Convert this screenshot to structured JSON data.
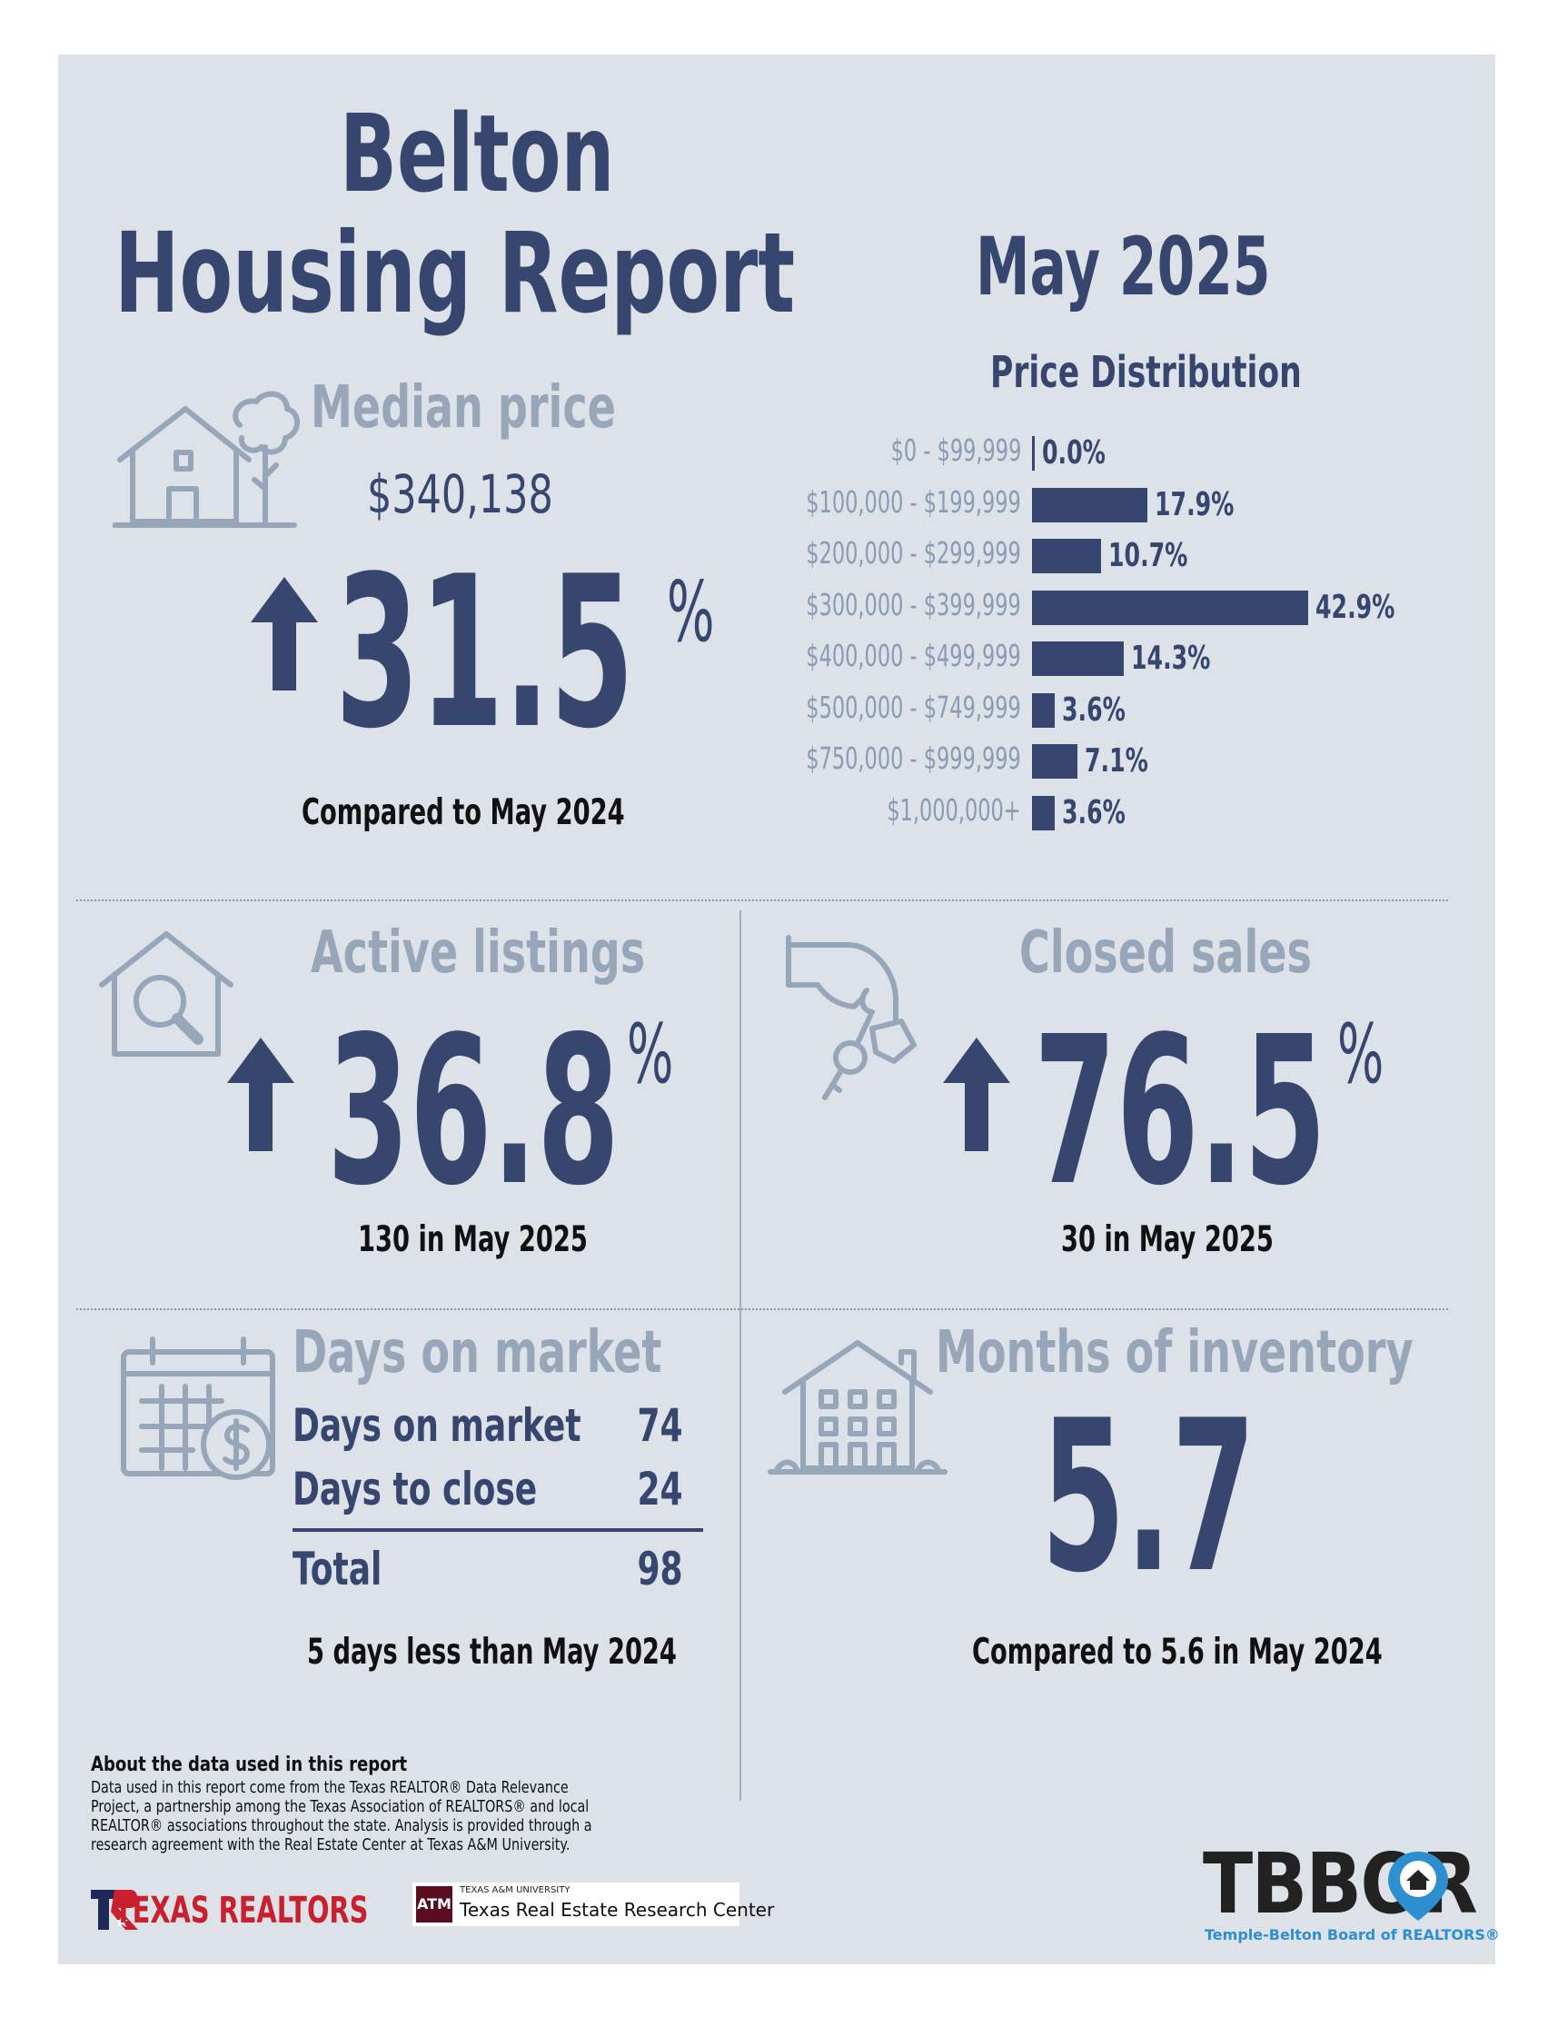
{
  "title": {
    "line1": "Belton",
    "line2": "Housing Report",
    "month": "May 2025"
  },
  "median": {
    "label": "Median price",
    "value": "$340,138",
    "change": "31.5",
    "pct_symbol": "%",
    "direction": "up",
    "compare": "Compared to May 2024"
  },
  "price_distribution": {
    "title": "Price Distribution",
    "ranges": [
      "$0 - $99,999",
      "$100,000 - $199,999",
      "$200,000 - $299,999",
      "$300,000 - $399,999",
      "$400,000 - $499,999",
      "$500,000 - $749,999",
      "$750,000 - $999,999",
      "$1,000,000+"
    ],
    "labels": [
      "0.0%",
      "17.9%",
      "10.7%",
      "42.9%",
      "14.3%",
      "3.6%",
      "7.1%",
      "3.6%"
    ],
    "values": [
      0.0,
      17.9,
      10.7,
      42.9,
      14.3,
      3.6,
      7.1,
      3.6
    ],
    "bar_color": "#36466f"
  },
  "active_listings": {
    "label": "Active listings",
    "change": "36.8",
    "pct_symbol": "%",
    "direction": "up",
    "detail": "130 in May 2025"
  },
  "closed_sales": {
    "label": "Closed sales",
    "change": "76.5",
    "pct_symbol": "%",
    "direction": "up",
    "detail": "30 in May 2025"
  },
  "days_on_market": {
    "label": "Days on market",
    "rows": [
      {
        "label": "Days on market",
        "value": "74"
      },
      {
        "label": "Days to close",
        "value": "24"
      }
    ],
    "total": {
      "label": "Total",
      "value": "98"
    },
    "note": "5 days less than May 2024"
  },
  "months_inventory": {
    "label": "Months of inventory",
    "value": "5.7",
    "compare": "Compared to 5.6 in May 2024"
  },
  "footer": {
    "heading": "About the data used in this report",
    "text": "Data used in this report come from the Texas REALTOR® Data Relevance Project, a partnership among the Texas Association of REALTORS® and local REALTOR® associations throughout the state. Analysis is provided through a research agreement with the Real Estate Center at Texas A&M University."
  },
  "logos": {
    "texas_realtors": "TEXAS REALTORS",
    "tamu_small": "TEXAS A&M UNIVERSITY",
    "tamu_name": "Texas Real Estate Research Center",
    "tamu_mark": "ATM",
    "tbbor": "TBBOR",
    "tbbor_sub": "Temple-Belton Board of REALTORS®"
  },
  "colors": {
    "navy": "#36466f",
    "muted": "#97a6b8",
    "panel": "#dde1e8",
    "tbbor_blue": "#2d8fcf",
    "texas_red": "#c8202e"
  }
}
